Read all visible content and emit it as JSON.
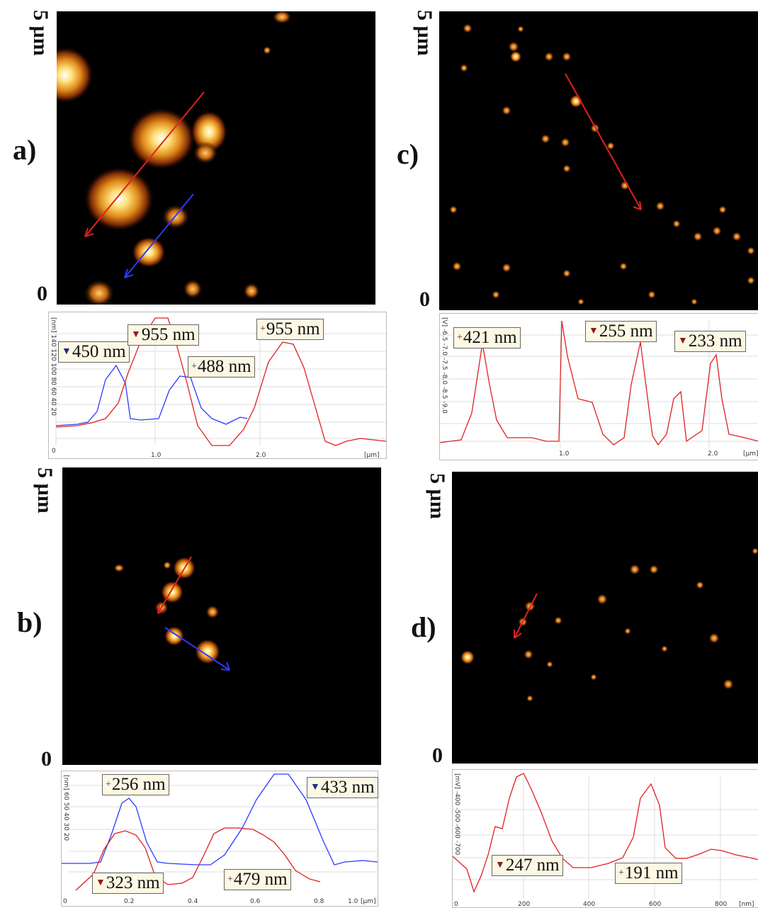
{
  "panels": [
    {
      "id": "a",
      "letter": "a)",
      "scale": "5 µm",
      "zero": "0",
      "labels": [
        {
          "text": "450 nm",
          "marker": "▼",
          "color": "#1d2a8a"
        },
        {
          "text": "955 nm",
          "marker": "▼",
          "color": "#8a1d1d"
        },
        {
          "text": "488 nm",
          "marker": "+",
          "color": "#1d2a8a"
        },
        {
          "text": "955 nm",
          "marker": "+",
          "color": "#5a1010"
        }
      ],
      "yunit": "[nm]",
      "yticks": [
        "140",
        "120",
        "100",
        "80",
        "60",
        "40",
        "20"
      ],
      "xticks": [
        "0",
        "1.0",
        "2.0"
      ],
      "xunit": "[µm]"
    },
    {
      "id": "b",
      "letter": "b)",
      "scale": "5 µm",
      "zero": "0",
      "labels": [
        {
          "text": "256 nm",
          "marker": "+",
          "color": "#1d2a8a"
        },
        {
          "text": "433 nm",
          "marker": "▼",
          "color": "#1d2a8a"
        },
        {
          "text": "323 nm",
          "marker": "▼",
          "color": "#8a1d1d"
        },
        {
          "text": "479 nm",
          "marker": "+",
          "color": "#5a1010"
        }
      ],
      "yunit": "[nm]",
      "yticks": [
        "60",
        "50",
        "40",
        "30",
        "20"
      ],
      "xticks": [
        "0",
        "0.2",
        "0.4",
        "0.6",
        "0.8",
        "1.0"
      ],
      "xunit": "[µm]"
    },
    {
      "id": "c",
      "letter": "c)",
      "scale": "5 µm",
      "zero": "0",
      "labels": [
        {
          "text": "421 nm",
          "marker": "+",
          "color": "#5a1010"
        },
        {
          "text": "255 nm",
          "marker": "▼",
          "color": "#8a1d1d"
        },
        {
          "text": "233 nm",
          "marker": "▼",
          "color": "#8a1d1d"
        }
      ],
      "yunit": "[V]",
      "yticks": [
        "-6.5",
        "-7.0",
        "-7.5",
        "-8.0",
        "-8.5",
        "-9.0"
      ],
      "xticks": [
        "0",
        "1.0",
        "2.0"
      ],
      "xunit": "[µm]"
    },
    {
      "id": "d",
      "letter": "d)",
      "scale": "5 µm",
      "zero": "0",
      "labels": [
        {
          "text": "247 nm",
          "marker": "▼",
          "color": "#8a1d1d"
        },
        {
          "text": "191 nm",
          "marker": "+",
          "color": "#5a1010"
        }
      ],
      "yunit": "[mV]",
      "yticks": [
        "-400",
        "-500",
        "-600",
        "-700"
      ],
      "xticks": [
        "0",
        "200",
        "400",
        "600",
        "800"
      ],
      "xunit": "[nm]"
    }
  ]
}
